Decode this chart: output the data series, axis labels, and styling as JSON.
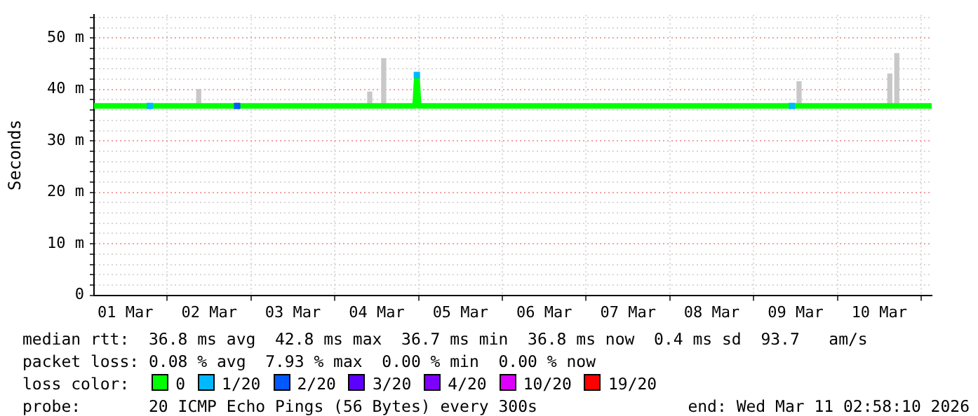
{
  "chart_data": {
    "type": "line",
    "ylabel": "Seconds",
    "xlim": [
      "2026-03-01T03:00",
      "2026-03-11T03:00"
    ],
    "xticks": [
      {
        "value": "2026-03-01T12:00",
        "label": "01 Mar"
      },
      {
        "value": "2026-03-02T12:00",
        "label": "02 Mar"
      },
      {
        "value": "2026-03-03T12:00",
        "label": "03 Mar"
      },
      {
        "value": "2026-03-04T12:00",
        "label": "04 Mar"
      },
      {
        "value": "2026-03-05T12:00",
        "label": "05 Mar"
      },
      {
        "value": "2026-03-06T12:00",
        "label": "06 Mar"
      },
      {
        "value": "2026-03-07T12:00",
        "label": "07 Mar"
      },
      {
        "value": "2026-03-08T12:00",
        "label": "08 Mar"
      },
      {
        "value": "2026-03-09T12:00",
        "label": "09 Mar"
      },
      {
        "value": "2026-03-10T12:00",
        "label": "10 Mar"
      }
    ],
    "ylim": [
      0,
      54.5
    ],
    "yticks": [
      0,
      {
        "value": 2,
        "label": null
      },
      {
        "value": 4,
        "label": null
      },
      {
        "value": 6,
        "label": null
      },
      {
        "value": 8,
        "label": null
      },
      {
        "value": 10,
        "label": "10 m"
      },
      {
        "value": 12,
        "label": null
      },
      {
        "value": 14,
        "label": null
      },
      {
        "value": 16,
        "label": null
      },
      {
        "value": 18,
        "label": null
      },
      {
        "value": 20,
        "label": "20 m"
      },
      {
        "value": 22,
        "label": null
      },
      {
        "value": 24,
        "label": null
      },
      {
        "value": 26,
        "label": null
      },
      {
        "value": 28,
        "label": null
      },
      {
        "value": 30,
        "label": "30 m"
      },
      {
        "value": 32,
        "label": null
      },
      {
        "value": 34,
        "label": null
      },
      {
        "value": 36,
        "label": null
      },
      {
        "value": 38,
        "label": null
      },
      {
        "value": 40,
        "label": "40 m"
      },
      {
        "value": 42,
        "label": null
      },
      {
        "value": 44,
        "label": null
      },
      {
        "value": 46,
        "label": null
      },
      {
        "value": 48,
        "label": null
      },
      {
        "value": 50,
        "label": "50 m"
      },
      {
        "value": 52,
        "label": null
      },
      {
        "value": 54,
        "label": null
      }
    ],
    "grid": true,
    "legend": "bottom",
    "legend_title": "loss color:",
    "series": [
      {
        "type": "bar",
        "color": "#c8c8c8",
        "x": [
          "2026-03-02T09:00",
          "2026-03-04T10:00",
          "2026-03-04T14:00",
          "2026-03-09T13:00",
          "2026-03-10T15:00",
          "2026-03-10T17:00"
        ],
        "base": [
          36.5,
          36.5,
          36.5,
          36.5,
          36.5,
          36.5
        ],
        "values": [
          3.5,
          3,
          9.5,
          5,
          6.5,
          10.5
        ]
      },
      {
        "name": "0",
        "color": "#00ff00",
        "marker": "none",
        "x": [
          "2026-03-01T03:00",
          "2026-03-04T23:00",
          "2026-03-04T23:30",
          "2026-03-05T00:00",
          "2026-03-11T03:00"
        ],
        "values": [
          36.8,
          36.8,
          42.8,
          36.8,
          36.8
        ]
      },
      {
        "type": "scatter",
        "name": "1/20",
        "color": "#00b8ff",
        "marker": "square",
        "x": [
          "2026-03-01T19:00",
          "2026-03-04T23:30",
          "2026-03-09T11:00"
        ],
        "values": [
          36.8,
          42.8,
          36.8
        ]
      },
      {
        "type": "scatter",
        "name": "2/20",
        "color": "#0059ff",
        "marker": "square",
        "x": [
          "2026-03-02T20:00"
        ],
        "values": [
          36.8
        ]
      },
      {
        "type": "scatter",
        "name": "3/20",
        "color": "#5e00ff",
        "marker": "square"
      },
      {
        "type": "scatter",
        "name": "4/20",
        "color": "#7e00ff",
        "marker": "square"
      },
      {
        "type": "scatter",
        "name": "10/20",
        "color": "#dd00ff",
        "marker": "square"
      },
      {
        "type": "scatter",
        "name": "19/20",
        "color": "#ff0000",
        "marker": "square"
      }
    ],
    "annotations": [
      "median rtt:  36.8 ms avg  42.8 ms max  36.7 ms min  36.8 ms now  0.4 ms sd  93.7   am/s",
      "packet loss: 0.08 % avg  7.93 % max  0.00 % min  0.00 % now",
      "probe:       20 ICMP Echo Pings (56 Bytes) every 300s",
      "end: Wed Mar 11 02:58:10 2026"
    ]
  }
}
